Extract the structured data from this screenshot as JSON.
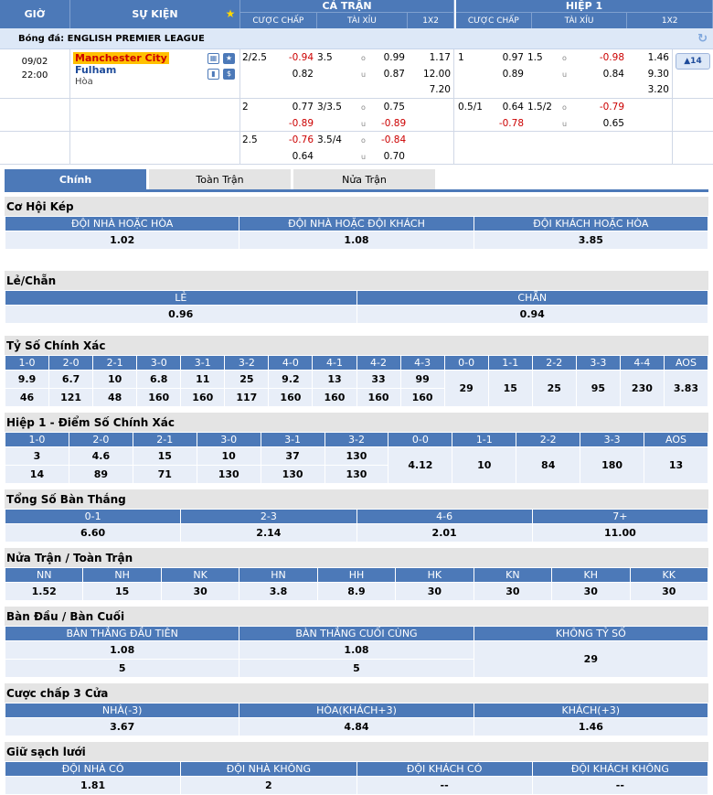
{
  "header": {
    "time": "GIỜ",
    "event": "SỰ KIỆN",
    "full": "CẢ TRẬN",
    "half": "HIỆP 1",
    "sub": [
      "CƯỢC CHẤP",
      "TÀI XỈU",
      "1X2"
    ]
  },
  "league": "Bóng đá: ENGLISH PREMIER LEAGUE",
  "match": {
    "date": "09/02",
    "time": "22:00",
    "home": "Manchester City",
    "away": "Fulham",
    "draw": "Hòa",
    "more": "▲14"
  },
  "rows": [
    {
      "ah_line": "2/2.5",
      "ah_h": "-0.94",
      "ah_a": "0.82",
      "ou_line": "3.5",
      "o": "0.99",
      "u": "0.87",
      "x1": "1.17",
      "x2": "12.00",
      "xd": "7.20",
      "h_ah_line": "1",
      "h_ah_h": "0.97",
      "h_ah_a": "0.89",
      "h_ou_line": "1.5",
      "h_o": "-0.98",
      "h_u": "0.84",
      "h_x1": "1.46",
      "h_x2": "9.30",
      "h_xd": "3.20"
    },
    {
      "ah_line": "2",
      "ah_h": "0.77",
      "ah_a": "-0.89",
      "ou_line": "3/3.5",
      "o": "0.75",
      "u": "-0.89",
      "h_ah_line": "0.5/1",
      "h_ah_h": "0.64",
      "h_ah_a": "-0.78",
      "h_ou_line": "1.5/2",
      "h_o": "-0.79",
      "h_u": "0.65"
    },
    {
      "ah_line": "2.5",
      "ah_h": "-0.76",
      "ah_a": "0.64",
      "ou_line": "3.5/4",
      "o": "-0.84",
      "u": "0.70"
    }
  ],
  "ou_o": "o",
  "ou_u": "u",
  "tabs": [
    "Chính",
    "Toàn Trận",
    "Nửa Trận"
  ],
  "sections": {
    "dc": {
      "title": "Cơ Hội Kép",
      "h": [
        "ĐỘI NHÀ HOẶC HÒA",
        "ĐỘI NHÀ HOẶC ĐỘI KHÁCH",
        "ĐỘI KHÁCH HOẶC HÒA"
      ],
      "v": [
        "1.02",
        "1.08",
        "3.85"
      ]
    },
    "oe": {
      "title": "Lẻ/Chẵn",
      "h": [
        "LẺ",
        "CHẴN"
      ],
      "v": [
        "0.96",
        "0.94"
      ]
    },
    "cs": {
      "title": "Tỷ Số Chính Xác",
      "h": [
        "1-0",
        "2-0",
        "2-1",
        "3-0",
        "3-1",
        "3-2",
        "4-0",
        "4-1",
        "4-2",
        "4-3",
        "0-0",
        "1-1",
        "2-2",
        "3-3",
        "4-4",
        "AOS"
      ],
      "r1": [
        "9.9",
        "6.7",
        "10",
        "6.8",
        "11",
        "25",
        "9.2",
        "13",
        "33",
        "99"
      ],
      "r2": [
        "46",
        "121",
        "48",
        "160",
        "160",
        "117",
        "160",
        "160",
        "160",
        "160"
      ],
      "d": [
        "29",
        "15",
        "25",
        "95",
        "230",
        "3.83"
      ]
    },
    "hcs": {
      "title": "Hiệp 1 - Điểm Số Chính Xác",
      "h": [
        "1-0",
        "2-0",
        "2-1",
        "3-0",
        "3-1",
        "3-2",
        "0-0",
        "1-1",
        "2-2",
        "3-3",
        "AOS"
      ],
      "r1": [
        "3",
        "4.6",
        "15",
        "10",
        "37",
        "130"
      ],
      "r2": [
        "14",
        "89",
        "71",
        "130",
        "130",
        "130"
      ],
      "d": [
        "4.12",
        "10",
        "84",
        "180",
        "13"
      ]
    },
    "tg": {
      "title": "Tổng Số Bàn Thắng",
      "h": [
        "0-1",
        "2-3",
        "4-6",
        "7+"
      ],
      "v": [
        "6.60",
        "2.14",
        "2.01",
        "11.00"
      ]
    },
    "htft": {
      "title": "Nửa Trận / Toàn Trận",
      "h": [
        "NN",
        "NH",
        "NK",
        "HN",
        "HH",
        "HK",
        "KN",
        "KH",
        "KK"
      ],
      "v": [
        "1.52",
        "15",
        "30",
        "3.8",
        "8.9",
        "30",
        "30",
        "30",
        "30"
      ]
    },
    "fl": {
      "title": "Bàn Đầu / Bàn Cuối",
      "h": [
        "BÀN THẮNG ĐẦU TIÊN",
        "BÀN THẮNG CUỐI CÙNG",
        "KHÔNG TỶ SỐ"
      ],
      "r1": [
        "1.08",
        "1.08"
      ],
      "r2": [
        "5",
        "5"
      ],
      "ns": "29"
    },
    "h3": {
      "title": "Cược chấp 3 Cửa",
      "h": [
        "NHÀ(-3)",
        "HÒA(KHÁCH+3)",
        "KHÁCH(+3)"
      ],
      "v": [
        "3.67",
        "4.84",
        "1.46"
      ]
    },
    "cls": {
      "title": "Giữ sạch lưới",
      "h": [
        "ĐỘI NHÀ CÓ",
        "ĐỘI NHÀ KHÔNG",
        "ĐỘI KHÁCH CÓ",
        "ĐỘI KHÁCH KHÔNG"
      ],
      "v": [
        "1.81",
        "2",
        "--",
        "--"
      ]
    }
  }
}
